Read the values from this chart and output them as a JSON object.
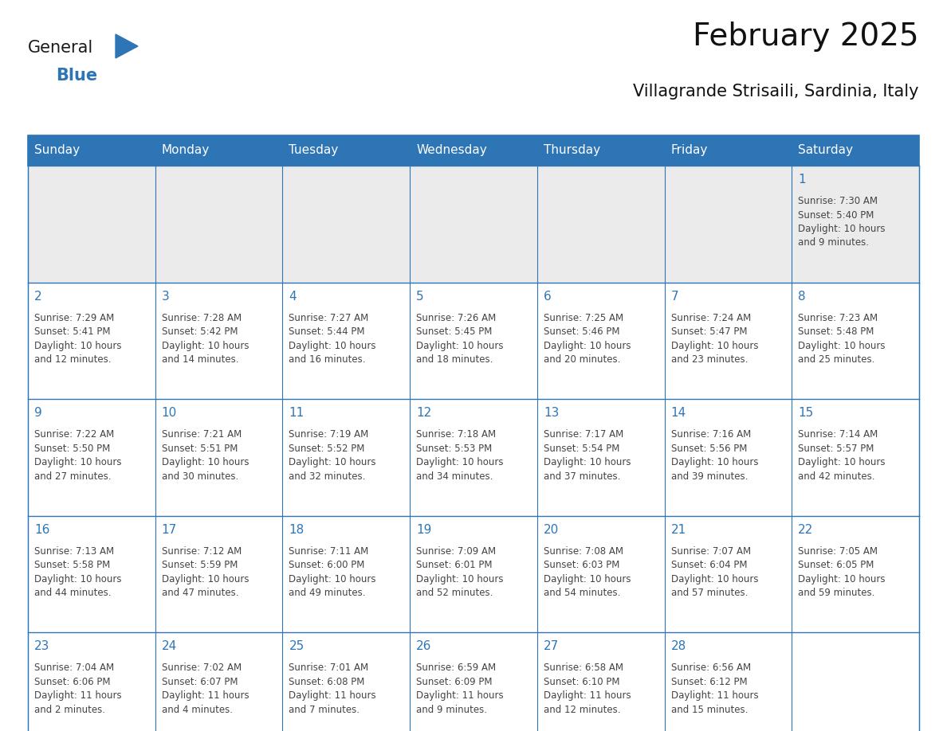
{
  "title": "February 2025",
  "subtitle": "Villagrande Strisaili, Sardinia, Italy",
  "days_of_week": [
    "Sunday",
    "Monday",
    "Tuesday",
    "Wednesday",
    "Thursday",
    "Friday",
    "Saturday"
  ],
  "header_color": "#2E75B6",
  "header_text_color": "#FFFFFF",
  "cell_border_color": "#2E75B6",
  "day_number_color": "#2E75B6",
  "info_text_color": "#444444",
  "background_color": "#FFFFFF",
  "row0_bg_color": "#EBEBEB",
  "row_bg_color": "#FFFFFF",
  "logo_general_color": "#1a1a1a",
  "logo_blue_color": "#2E75B6",
  "calendar_data": [
    [
      null,
      null,
      null,
      null,
      null,
      null,
      {
        "day": 1,
        "sunrise": "7:30 AM",
        "sunset": "5:40 PM",
        "daylight": "10 hours\nand 9 minutes."
      }
    ],
    [
      {
        "day": 2,
        "sunrise": "7:29 AM",
        "sunset": "5:41 PM",
        "daylight": "10 hours\nand 12 minutes."
      },
      {
        "day": 3,
        "sunrise": "7:28 AM",
        "sunset": "5:42 PM",
        "daylight": "10 hours\nand 14 minutes."
      },
      {
        "day": 4,
        "sunrise": "7:27 AM",
        "sunset": "5:44 PM",
        "daylight": "10 hours\nand 16 minutes."
      },
      {
        "day": 5,
        "sunrise": "7:26 AM",
        "sunset": "5:45 PM",
        "daylight": "10 hours\nand 18 minutes."
      },
      {
        "day": 6,
        "sunrise": "7:25 AM",
        "sunset": "5:46 PM",
        "daylight": "10 hours\nand 20 minutes."
      },
      {
        "day": 7,
        "sunrise": "7:24 AM",
        "sunset": "5:47 PM",
        "daylight": "10 hours\nand 23 minutes."
      },
      {
        "day": 8,
        "sunrise": "7:23 AM",
        "sunset": "5:48 PM",
        "daylight": "10 hours\nand 25 minutes."
      }
    ],
    [
      {
        "day": 9,
        "sunrise": "7:22 AM",
        "sunset": "5:50 PM",
        "daylight": "10 hours\nand 27 minutes."
      },
      {
        "day": 10,
        "sunrise": "7:21 AM",
        "sunset": "5:51 PM",
        "daylight": "10 hours\nand 30 minutes."
      },
      {
        "day": 11,
        "sunrise": "7:19 AM",
        "sunset": "5:52 PM",
        "daylight": "10 hours\nand 32 minutes."
      },
      {
        "day": 12,
        "sunrise": "7:18 AM",
        "sunset": "5:53 PM",
        "daylight": "10 hours\nand 34 minutes."
      },
      {
        "day": 13,
        "sunrise": "7:17 AM",
        "sunset": "5:54 PM",
        "daylight": "10 hours\nand 37 minutes."
      },
      {
        "day": 14,
        "sunrise": "7:16 AM",
        "sunset": "5:56 PM",
        "daylight": "10 hours\nand 39 minutes."
      },
      {
        "day": 15,
        "sunrise": "7:14 AM",
        "sunset": "5:57 PM",
        "daylight": "10 hours\nand 42 minutes."
      }
    ],
    [
      {
        "day": 16,
        "sunrise": "7:13 AM",
        "sunset": "5:58 PM",
        "daylight": "10 hours\nand 44 minutes."
      },
      {
        "day": 17,
        "sunrise": "7:12 AM",
        "sunset": "5:59 PM",
        "daylight": "10 hours\nand 47 minutes."
      },
      {
        "day": 18,
        "sunrise": "7:11 AM",
        "sunset": "6:00 PM",
        "daylight": "10 hours\nand 49 minutes."
      },
      {
        "day": 19,
        "sunrise": "7:09 AM",
        "sunset": "6:01 PM",
        "daylight": "10 hours\nand 52 minutes."
      },
      {
        "day": 20,
        "sunrise": "7:08 AM",
        "sunset": "6:03 PM",
        "daylight": "10 hours\nand 54 minutes."
      },
      {
        "day": 21,
        "sunrise": "7:07 AM",
        "sunset": "6:04 PM",
        "daylight": "10 hours\nand 57 minutes."
      },
      {
        "day": 22,
        "sunrise": "7:05 AM",
        "sunset": "6:05 PM",
        "daylight": "10 hours\nand 59 minutes."
      }
    ],
    [
      {
        "day": 23,
        "sunrise": "7:04 AM",
        "sunset": "6:06 PM",
        "daylight": "11 hours\nand 2 minutes."
      },
      {
        "day": 24,
        "sunrise": "7:02 AM",
        "sunset": "6:07 PM",
        "daylight": "11 hours\nand 4 minutes."
      },
      {
        "day": 25,
        "sunrise": "7:01 AM",
        "sunset": "6:08 PM",
        "daylight": "11 hours\nand 7 minutes."
      },
      {
        "day": 26,
        "sunrise": "6:59 AM",
        "sunset": "6:09 PM",
        "daylight": "11 hours\nand 9 minutes."
      },
      {
        "day": 27,
        "sunrise": "6:58 AM",
        "sunset": "6:10 PM",
        "daylight": "11 hours\nand 12 minutes."
      },
      {
        "day": 28,
        "sunrise": "6:56 AM",
        "sunset": "6:12 PM",
        "daylight": "11 hours\nand 15 minutes."
      },
      null
    ]
  ],
  "num_cols": 7,
  "num_rows": 5,
  "header_font_size": 11,
  "day_number_font_size": 11,
  "info_font_size": 8.5,
  "title_font_size": 28,
  "subtitle_font_size": 15
}
